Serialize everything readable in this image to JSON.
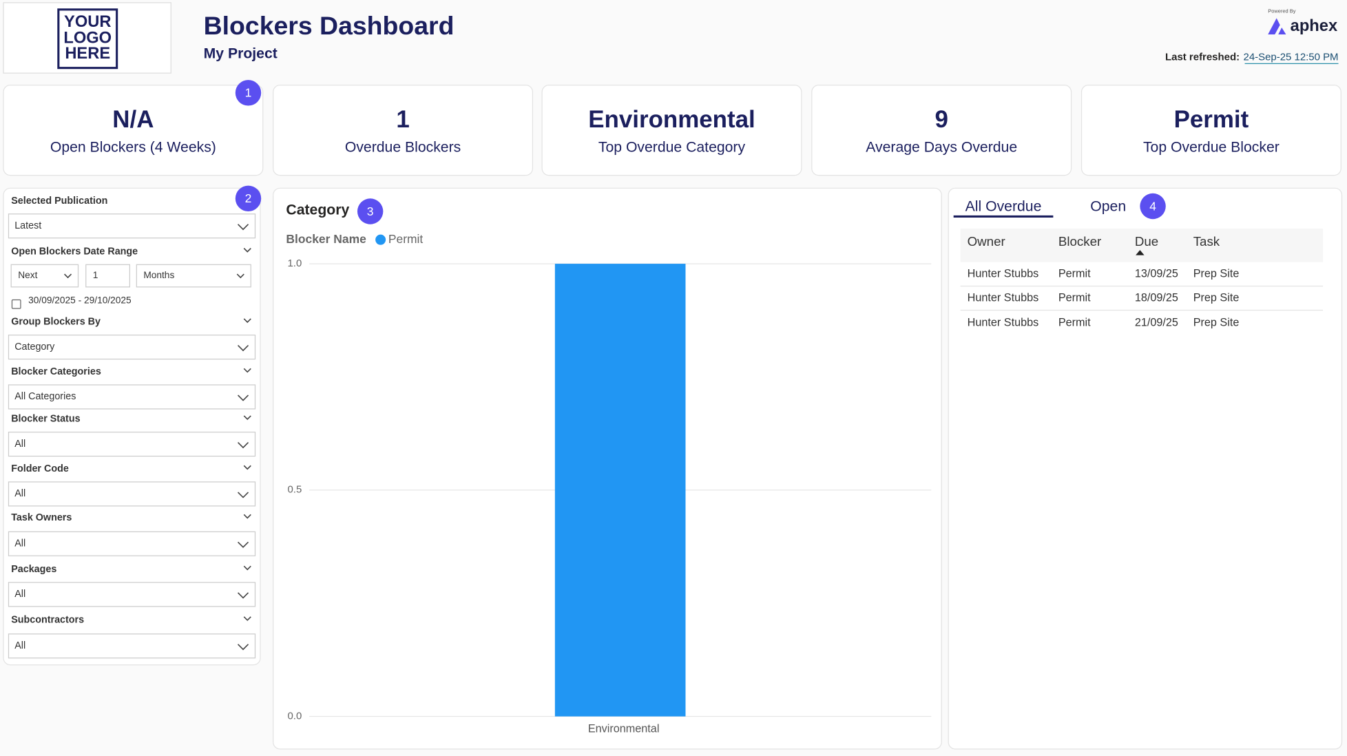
{
  "header": {
    "logo_lines": [
      "YOUR",
      "LOGO",
      "HERE"
    ],
    "title": "Blockers Dashboard",
    "subtitle": "My Project",
    "powered_by": "Powered By",
    "brand": "aphex",
    "last_refreshed_label": "Last refreshed:",
    "last_refreshed_value": "24-Sep-25 12:50 PM"
  },
  "badges": [
    1,
    2,
    3,
    4
  ],
  "kpis": [
    {
      "value": "N/A",
      "label": "Open Blockers (4 Weeks)"
    },
    {
      "value": 1,
      "label": "Overdue Blockers"
    },
    {
      "value": "Environmental",
      "label": "Top Overdue Category"
    },
    {
      "value": 9,
      "label": "Average Days Overdue"
    },
    {
      "value": "Permit",
      "label": "Top Overdue Blocker"
    }
  ],
  "filters": {
    "selected_publication": {
      "label": "Selected Publication",
      "value": "Latest"
    },
    "date_range": {
      "label": "Open Blockers Date Range",
      "direction": "Next",
      "amount": 1,
      "unit": "Months",
      "range": "30/09/2025 - 29/10/2025"
    },
    "slicers": [
      {
        "label": "Group Blockers By",
        "value": "Category"
      },
      {
        "label": "Blocker Categories",
        "value": "All Categories"
      },
      {
        "label": "Blocker Status",
        "value": "All"
      },
      {
        "label": "Folder Code",
        "value": "All"
      },
      {
        "label": "Task Owners",
        "value": "All"
      },
      {
        "label": "Packages",
        "value": "All"
      },
      {
        "label": "Subcontractors",
        "value": "All"
      }
    ]
  },
  "chart_data": {
    "type": "bar",
    "title": "Category",
    "legend_title": "Blocker Name",
    "categories": [
      "Environmental"
    ],
    "series": [
      {
        "name": "Permit",
        "color": "#2196f3",
        "values": [
          1
        ]
      }
    ],
    "ylim": [
      0,
      1
    ],
    "yticks": [
      {
        "value": 0,
        "label": "0.0"
      },
      {
        "value": 0.5,
        "label": "0.5"
      },
      {
        "value": 1,
        "label": "1.0"
      }
    ],
    "grid": true
  },
  "table": {
    "tabs": [
      "All Overdue",
      "Open"
    ],
    "columns": [
      "Owner",
      "Blocker",
      "Due",
      "Task"
    ],
    "rows": [
      [
        "Hunter Stubbs",
        "Permit",
        "13/09/25",
        "Prep Site"
      ],
      [
        "Hunter Stubbs",
        "Permit",
        "18/09/25",
        "Prep Site"
      ],
      [
        "Hunter Stubbs",
        "Permit",
        "21/09/25",
        "Prep Site"
      ]
    ]
  }
}
